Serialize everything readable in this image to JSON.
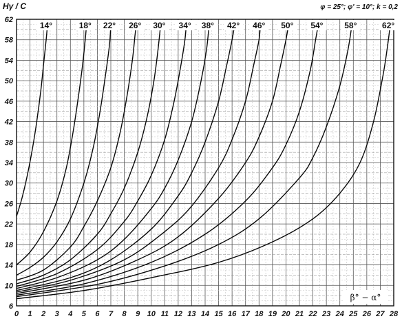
{
  "chart_data": {
    "type": "line",
    "title": "",
    "ylabel": "Hγ / C",
    "xlabel": "β° − α°",
    "params": "φ = 25°; φ' = 10°; k = 0,2",
    "xlim": [
      0,
      28
    ],
    "ylim": [
      6,
      62
    ],
    "x_ticks": [
      0,
      1,
      2,
      3,
      4,
      5,
      6,
      7,
      8,
      9,
      10,
      11,
      12,
      13,
      14,
      15,
      16,
      17,
      18,
      19,
      20,
      21,
      22,
      23,
      24,
      25,
      26,
      27,
      28
    ],
    "y_ticks": [
      6,
      10,
      14,
      18,
      22,
      26,
      30,
      34,
      38,
      42,
      46,
      50,
      54,
      58,
      62
    ],
    "grid": true,
    "series": [
      {
        "name": "14°",
        "points": [
          [
            0,
            23.5
          ],
          [
            0.4,
            27
          ],
          [
            0.8,
            31.5
          ],
          [
            1.2,
            37
          ],
          [
            1.5,
            42
          ],
          [
            1.8,
            48
          ],
          [
            2.0,
            53
          ],
          [
            2.2,
            58
          ],
          [
            2.3,
            61
          ]
        ]
      },
      {
        "name": "18°",
        "points": [
          [
            0,
            14
          ],
          [
            1,
            16.5
          ],
          [
            2,
            20.5
          ],
          [
            3,
            26.5
          ],
          [
            3.7,
            33
          ],
          [
            4.2,
            40
          ],
          [
            4.6,
            47
          ],
          [
            4.9,
            53
          ],
          [
            5.1,
            58
          ],
          [
            5.2,
            61
          ]
        ]
      },
      {
        "name": "22°",
        "points": [
          [
            0,
            12
          ],
          [
            1,
            13.5
          ],
          [
            2,
            15.5
          ],
          [
            3,
            18.5
          ],
          [
            4,
            23
          ],
          [
            5,
            30
          ],
          [
            5.7,
            37
          ],
          [
            6.2,
            44
          ],
          [
            6.6,
            51
          ],
          [
            6.9,
            57
          ],
          [
            7.0,
            61
          ]
        ]
      },
      {
        "name": "26°",
        "points": [
          [
            0,
            11
          ],
          [
            2,
            13
          ],
          [
            4,
            17.5
          ],
          [
            5,
            21.5
          ],
          [
            6,
            26.5
          ],
          [
            7,
            33
          ],
          [
            7.7,
            40
          ],
          [
            8.2,
            47
          ],
          [
            8.6,
            54
          ],
          [
            8.8,
            59
          ],
          [
            8.9,
            61
          ]
        ]
      },
      {
        "name": "30°",
        "points": [
          [
            0,
            10.3
          ],
          [
            2,
            12
          ],
          [
            4,
            15
          ],
          [
            6,
            20
          ],
          [
            7,
            24
          ],
          [
            8,
            29
          ],
          [
            9,
            36
          ],
          [
            9.7,
            43
          ],
          [
            10.2,
            50
          ],
          [
            10.5,
            56
          ],
          [
            10.7,
            61
          ]
        ]
      },
      {
        "name": "34°",
        "points": [
          [
            0,
            9.8
          ],
          [
            3,
            12.3
          ],
          [
            6,
            17
          ],
          [
            8,
            22.5
          ],
          [
            9,
            26.5
          ],
          [
            10,
            31.5
          ],
          [
            11,
            38.5
          ],
          [
            11.7,
            46
          ],
          [
            12.2,
            53
          ],
          [
            12.5,
            58
          ],
          [
            12.6,
            61
          ]
        ]
      },
      {
        "name": "38°",
        "points": [
          [
            0,
            9.4
          ],
          [
            3,
            11.5
          ],
          [
            6,
            15
          ],
          [
            8,
            19
          ],
          [
            10,
            25
          ],
          [
            11,
            29
          ],
          [
            12,
            34.5
          ],
          [
            13,
            42
          ],
          [
            13.7,
            50
          ],
          [
            14.1,
            56
          ],
          [
            14.3,
            61
          ]
        ]
      },
      {
        "name": "42°",
        "points": [
          [
            0,
            9
          ],
          [
            4,
            11.5
          ],
          [
            7,
            15
          ],
          [
            10,
            21
          ],
          [
            12,
            27.5
          ],
          [
            13,
            32
          ],
          [
            14,
            38
          ],
          [
            15,
            46
          ],
          [
            15.6,
            53
          ],
          [
            16.0,
            58
          ],
          [
            16.2,
            61
          ]
        ]
      },
      {
        "name": "46°",
        "points": [
          [
            0,
            8.7
          ],
          [
            4,
            11
          ],
          [
            8,
            15
          ],
          [
            11,
            20.5
          ],
          [
            13,
            25.5
          ],
          [
            15,
            33
          ],
          [
            16,
            38.5
          ],
          [
            17,
            46
          ],
          [
            17.6,
            53
          ],
          [
            18.0,
            58
          ],
          [
            18.1,
            61
          ]
        ]
      },
      {
        "name": "50°",
        "points": [
          [
            0,
            8.4
          ],
          [
            5,
            11
          ],
          [
            9,
            15
          ],
          [
            12,
            19.5
          ],
          [
            15,
            27
          ],
          [
            17,
            34
          ],
          [
            18,
            39
          ],
          [
            19,
            46
          ],
          [
            19.6,
            53
          ],
          [
            20.0,
            58
          ],
          [
            20.2,
            61
          ]
        ]
      },
      {
        "name": "54°",
        "points": [
          [
            0,
            8.1
          ],
          [
            5,
            10.3
          ],
          [
            10,
            14.5
          ],
          [
            14,
            20
          ],
          [
            17,
            26.5
          ],
          [
            19,
            33
          ],
          [
            20,
            37.5
          ],
          [
            21,
            44
          ],
          [
            21.8,
            52
          ],
          [
            22.2,
            58
          ],
          [
            22.4,
            61
          ]
        ]
      },
      {
        "name": "58°",
        "points": [
          [
            0,
            7.8
          ],
          [
            6,
            10.2
          ],
          [
            11,
            13.8
          ],
          [
            15,
            18
          ],
          [
            18,
            23
          ],
          [
            21,
            31
          ],
          [
            22,
            35
          ],
          [
            23,
            41
          ],
          [
            24,
            49
          ],
          [
            24.6,
            56
          ],
          [
            24.9,
            61
          ]
        ]
      },
      {
        "name": "62°",
        "points": [
          [
            0,
            7.4
          ],
          [
            5,
            9
          ],
          [
            10,
            11.5
          ],
          [
            15,
            14.5
          ],
          [
            19,
            18.5
          ],
          [
            22,
            23
          ],
          [
            24,
            28
          ],
          [
            25.5,
            34
          ],
          [
            26.5,
            42
          ],
          [
            27.2,
            51
          ],
          [
            27.5,
            56
          ],
          [
            27.7,
            60
          ]
        ]
      }
    ]
  }
}
